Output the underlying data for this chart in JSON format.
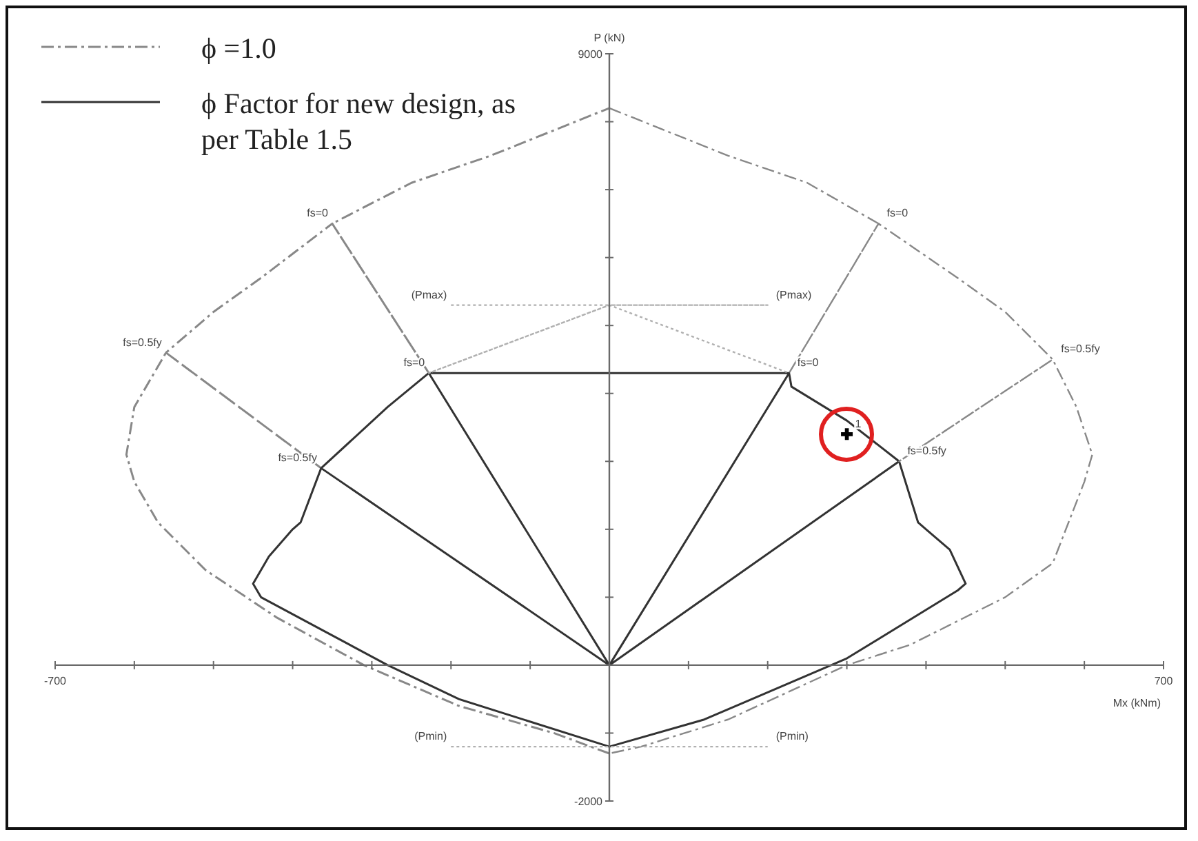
{
  "chart_data": {
    "type": "line",
    "xlabel": "Mx (kNm)",
    "ylabel": "P (kN)",
    "xlim": [
      -700,
      700
    ],
    "ylim": [
      -2000,
      9000
    ],
    "xticks": [
      -700,
      {
        "value": -600,
        "label": null
      },
      {
        "value": -500,
        "label": null
      },
      {
        "value": -400,
        "label": null
      },
      {
        "value": -300,
        "label": null
      },
      {
        "value": -200,
        "label": null
      },
      {
        "value": -100,
        "label": null
      },
      {
        "value": 0,
        "label": null
      },
      {
        "value": 100,
        "label": null
      },
      {
        "value": 200,
        "label": null
      },
      {
        "value": 300,
        "label": null
      },
      {
        "value": 400,
        "label": null
      },
      {
        "value": 500,
        "label": null
      },
      {
        "value": 600,
        "label": null
      },
      700
    ],
    "yticks": [
      -2000,
      {
        "value": -1000,
        "label": null
      },
      {
        "value": 0,
        "label": null
      },
      {
        "value": 1000,
        "label": null
      },
      {
        "value": 2000,
        "label": null
      },
      {
        "value": 3000,
        "label": null
      },
      {
        "value": 4000,
        "label": null
      },
      {
        "value": 5000,
        "label": null
      },
      {
        "value": 6000,
        "label": null
      },
      {
        "value": 7000,
        "label": null
      },
      {
        "value": 8000,
        "label": null
      },
      9000
    ],
    "legend": "top left",
    "grid": false,
    "marker": "none",
    "series": [
      {
        "name": "ϕ =1.0",
        "color": "#888888",
        "line_style": "dashed",
        "x": [
          0,
          -70,
          -190,
          -310,
          -420,
          -510,
          -570,
          -600,
          -610,
          -600,
          -560,
          -364,
          -560,
          -500,
          -440,
          -350,
          -228,
          -350,
          -250,
          -150,
          0
        ],
        "values": [
          -1300,
          -1000,
          -600,
          0,
          700,
          1400,
          2100,
          2700,
          3100,
          3800,
          4600,
          2900,
          4600,
          5200,
          5700,
          6500,
          4300,
          6500,
          7100,
          7500,
          8200
        ]
      },
      {
        "name": "ϕ Factor for new design, as per Table 1.5",
        "color": "#333333",
        "line_style": "solid",
        "x": [
          0,
          -364,
          -390,
          -400,
          -430,
          -450,
          -440,
          -360,
          -280,
          -190,
          0,
          120,
          300,
          440,
          450,
          430,
          400,
          390,
          366,
          0,
          366,
          300,
          230,
          227,
          0,
          227,
          -228,
          0,
          -228,
          -280,
          -364
        ],
        "values": [
          0,
          2900,
          2100,
          2000,
          1600,
          1200,
          1000,
          500,
          0,
          -500,
          -1200,
          -800,
          100,
          1100,
          1200,
          1700,
          2000,
          2100,
          3000,
          0,
          3000,
          3600,
          4100,
          4300,
          0,
          4300,
          4300,
          0,
          4300,
          3800,
          2900
        ]
      },
      {
        "color": "#888888",
        "line_style": "dashed",
        "x": [
          0,
          150,
          250,
          340,
          227,
          340,
          440,
          500,
          560,
          366,
          560,
          590,
          610,
          600,
          560,
          500,
          380,
          300,
          150,
          40,
          0
        ],
        "values": [
          8200,
          7500,
          7100,
          6500,
          4300,
          6500,
          5700,
          5200,
          4500,
          3000,
          4500,
          3800,
          3100,
          2700,
          1500,
          1000,
          300,
          0,
          -800,
          -1200,
          -1300
        ]
      },
      {
        "color": "#b0b0b0",
        "line_style": "dotted",
        "x": [
          -200,
          0,
          200,
          0,
          -228,
          0,
          227,
          0,
          -200,
          200
        ],
        "values": [
          5300,
          5300,
          5300,
          5300,
          4300,
          5300,
          4300,
          null,
          -1200,
          -1200
        ]
      },
      {
        "type": "scatter",
        "marker": "cross",
        "color": "#000000",
        "x": [
          300
        ],
        "values": [
          3400
        ]
      }
    ],
    "annotations": [
      {
        "text": "fs=0",
        "x": -350,
        "y": 6500
      },
      {
        "text": "fs=0",
        "x": 340,
        "y": 6500
      },
      {
        "text": "fs=0",
        "x": -228,
        "y": 4300
      },
      {
        "text": "fs=0",
        "x": 227,
        "y": 4300
      },
      {
        "text": "fs=0.5fy",
        "x": -560,
        "y": 4600
      },
      {
        "text": "fs=0.5fy",
        "x": 560,
        "y": 4500
      },
      {
        "text": "fs=0.5fy",
        "x": -364,
        "y": 2900
      },
      {
        "text": "fs=0.5fy",
        "x": 366,
        "y": 3000
      },
      {
        "text": "(Pmax)",
        "x": -200,
        "y": 5300
      },
      {
        "text": "(Pmax)",
        "x": 200,
        "y": 5300
      },
      {
        "text": "(Pmin)",
        "x": -200,
        "y": -1200
      },
      {
        "text": "(Pmin)",
        "x": 200,
        "y": -1200
      },
      {
        "text": "1",
        "x": 300,
        "y": 3400
      }
    ]
  }
}
